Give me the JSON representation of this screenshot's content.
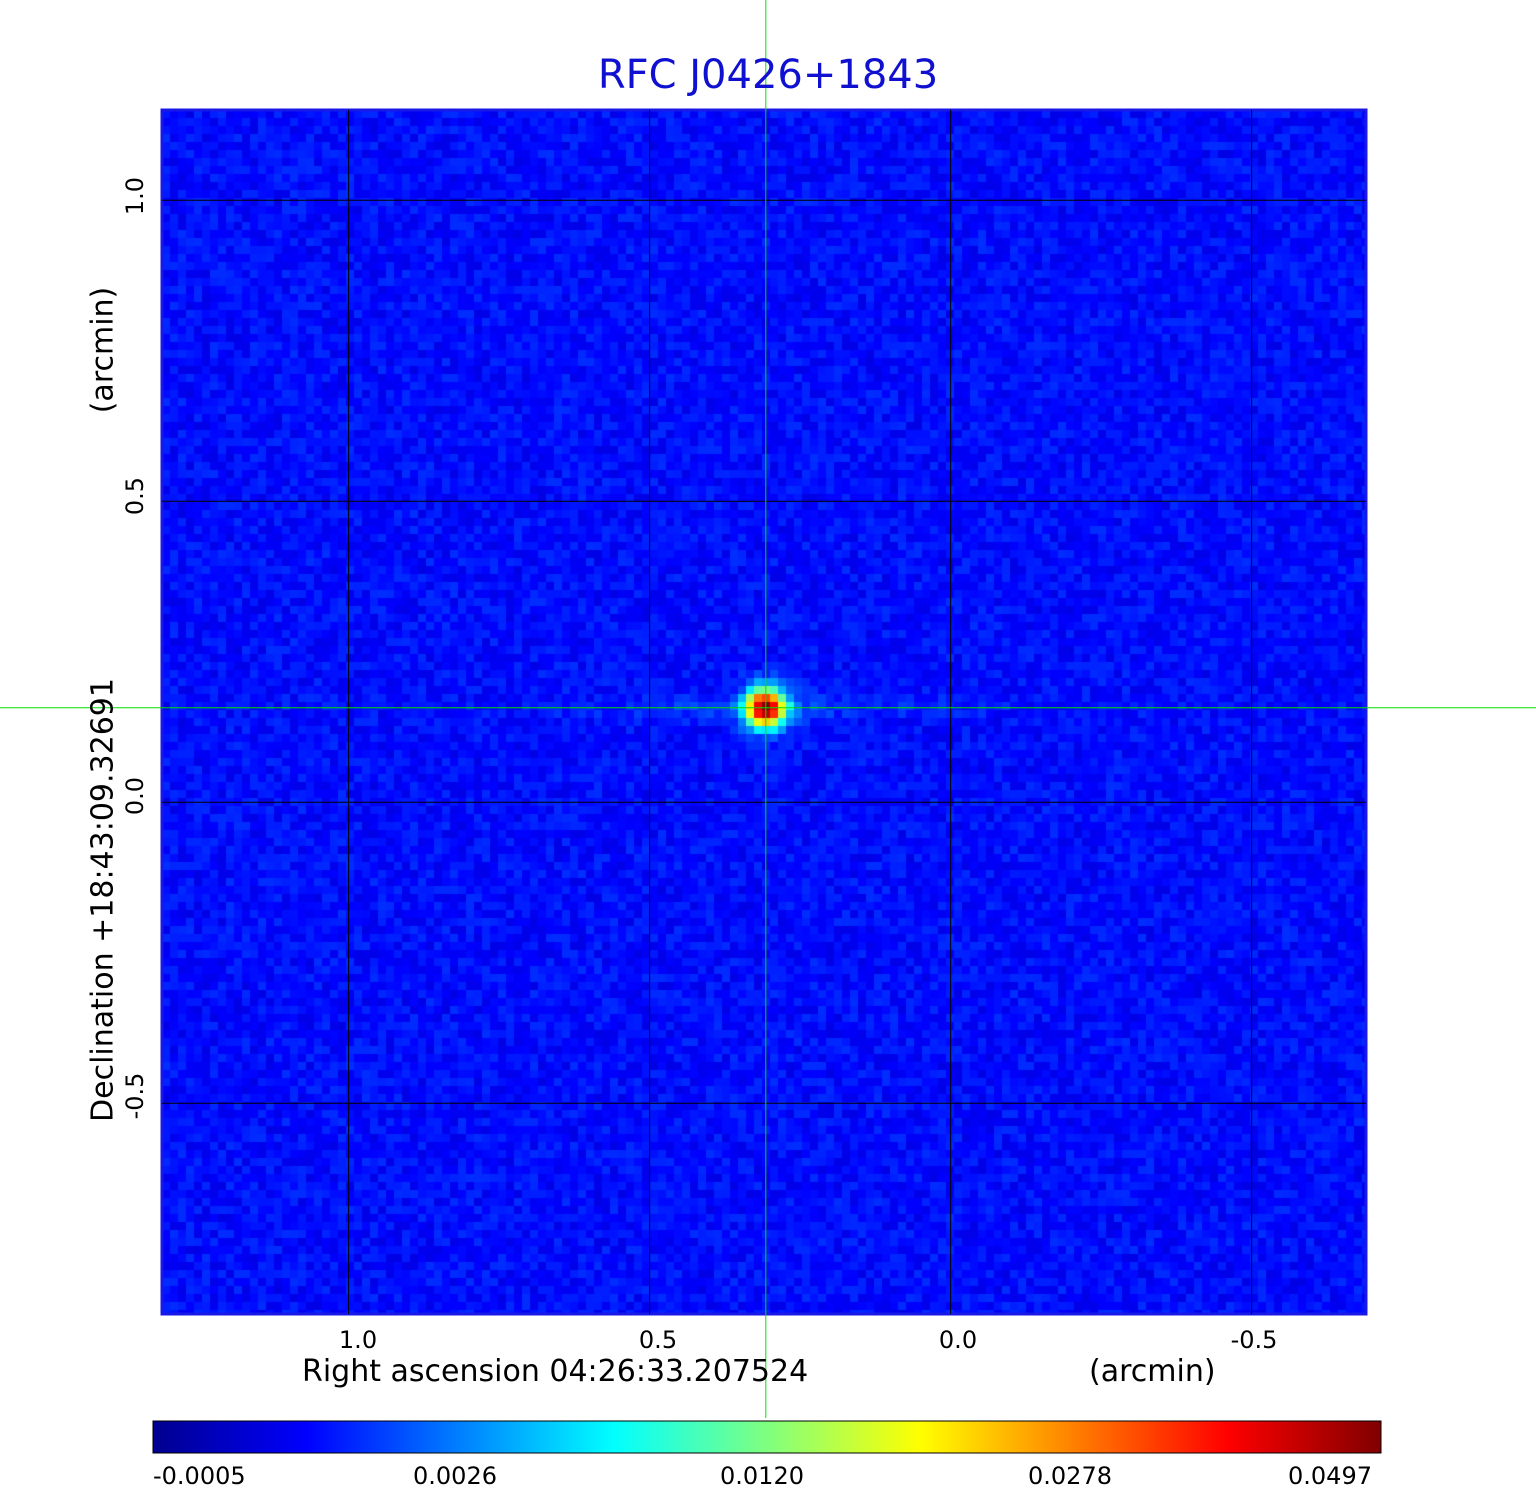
{
  "chart_data": {
    "type": "heatmap",
    "title": "RFC J0426+1843",
    "xlabel": "Right ascension  04:26:33.207524",
    "xunit": "(arcmin)",
    "ylabel": "Declination  +18:43:09.32691",
    "yunit": "(arcmin)",
    "xlim": [
      1.31,
      -0.69
    ],
    "ylim": [
      -0.85,
      1.15
    ],
    "x_ticks": [
      1.0,
      0.5,
      0.0,
      -0.5
    ],
    "x_tick_labels": [
      "1.0",
      "0.5",
      "0.0",
      "-0.5"
    ],
    "y_ticks": [
      1.0,
      0.5,
      0.0,
      -0.5
    ],
    "y_tick_labels": [
      "1.0",
      "0.5",
      "0.0",
      "-0.5"
    ],
    "grid": true,
    "crosshair": {
      "x": 0.307,
      "y": 0.157
    },
    "source": {
      "x": 0.307,
      "y": 0.157,
      "peak": 0.0497
    },
    "colorbar": {
      "colormap": "jet",
      "min": -0.0005,
      "max": 0.0497,
      "ticks": [
        "-0.0005",
        "0.0026",
        "0.0120",
        "0.0278",
        "0.0497"
      ]
    }
  }
}
